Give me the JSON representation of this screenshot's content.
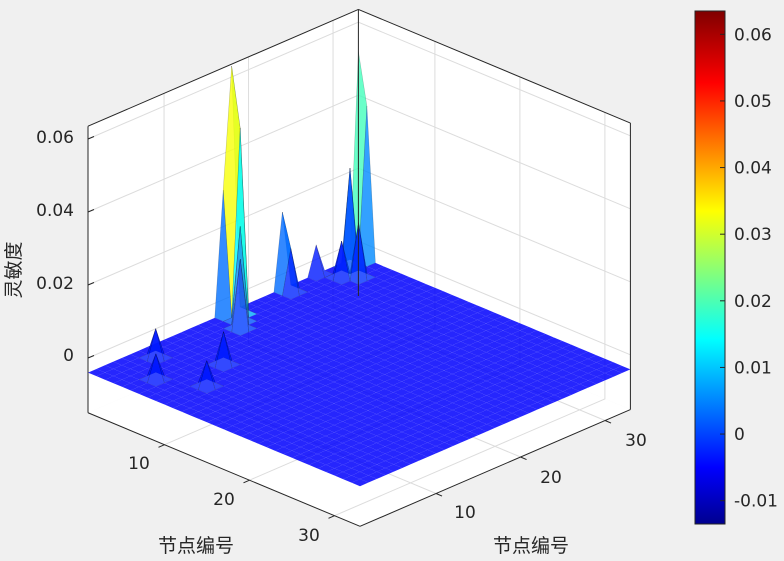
{
  "chart_data": {
    "type": "surface3d",
    "title": "",
    "xlabel": "节点编号",
    "ylabel": "节点编号",
    "zlabel": "灵敏度",
    "x_range": [
      1,
      33
    ],
    "y_range": [
      1,
      33
    ],
    "z_ticks": [
      0,
      0.02,
      0.04,
      0.06
    ],
    "x_ticks": [
      10,
      20,
      30
    ],
    "y_ticks": [
      10,
      20,
      30
    ],
    "colorbar": {
      "colormap": "jet",
      "min": -0.0135,
      "max": 0.0635,
      "ticks": [
        -0.01,
        0,
        0.01,
        0.02,
        0.03,
        0.04,
        0.05,
        0.06
      ]
    },
    "baseline": -0.004,
    "peaks": [
      {
        "x": 1,
        "y": 18,
        "z": 0.063
      },
      {
        "x": 2,
        "y": 18,
        "z": 0.047
      },
      {
        "x": 1,
        "y": 17,
        "z": 0.03
      },
      {
        "x": 3,
        "y": 17,
        "z": 0.022
      },
      {
        "x": 4,
        "y": 16,
        "z": 0.015
      },
      {
        "x": 1,
        "y": 24,
        "z": 0.017
      },
      {
        "x": 2,
        "y": 24,
        "z": 0.008
      },
      {
        "x": 1,
        "y": 33,
        "z": 0.052
      },
      {
        "x": 2,
        "y": 33,
        "z": 0.038
      },
      {
        "x": 2,
        "y": 31,
        "z": 0.023
      },
      {
        "x": 4,
        "y": 30,
        "z": 0.011
      },
      {
        "x": 3,
        "y": 29,
        "z": 0.006
      },
      {
        "x": 8,
        "y": 10,
        "z": 0.005
      },
      {
        "x": 3,
        "y": 7,
        "z": 0.004
      },
      {
        "x": 1,
        "y": 28,
        "z": 0.004
      },
      {
        "x": 6,
        "y": 4,
        "z": 0.003
      },
      {
        "x": 10,
        "y": 6,
        "z": 0.003
      }
    ],
    "grid": true
  }
}
